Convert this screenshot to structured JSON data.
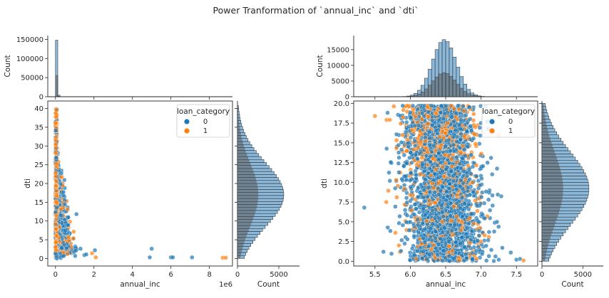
{
  "chart_data": {
    "title": "Power Tranformation of `annual_inc` and `dti`",
    "colors": {
      "class0": "#1f77b4",
      "class1": "#ff7f0e",
      "hist": "#6fa6cf"
    },
    "panels": [
      {
        "type": "scatter",
        "xlabel": "annual_inc",
        "ylabel": "dti",
        "x_offset_label": "1e6",
        "xlim": [
          -0.4,
          9.2
        ],
        "ylim": [
          -2,
          42
        ],
        "xticks": [
          "0",
          "2",
          "4",
          "6",
          "8"
        ],
        "xtick_values": [
          0,
          2,
          4,
          6,
          8
        ],
        "yticks": [
          "0",
          "5",
          "10",
          "15",
          "20",
          "25",
          "30",
          "35",
          "40"
        ],
        "ytick_values": [
          0,
          5,
          10,
          15,
          20,
          25,
          30,
          35,
          40
        ],
        "legend": {
          "title": "loan_category",
          "entries": [
            "0",
            "1"
          ],
          "placement": "top-right"
        },
        "top_hist": {
          "ylabel": "Count",
          "yticks": [
            "0",
            "50000",
            "100000",
            "150000"
          ],
          "ytick_values": [
            0,
            50000,
            100000,
            150000
          ],
          "ylim": [
            0,
            160000
          ]
        },
        "right_hist": {
          "xlabel": "Count",
          "xticks": [
            "0",
            "5000"
          ],
          "xtick_values": [
            0,
            5000
          ],
          "xlim": [
            0,
            7500
          ]
        },
        "outliers": [
          {
            "x": 1.5,
            "y": 0.9,
            "class": 0
          },
          {
            "x": 1.6,
            "y": 1.1,
            "class": 0
          },
          {
            "x": 1.9,
            "y": 1.4,
            "class": 1
          },
          {
            "x": 2.1,
            "y": 0.3,
            "class": 1
          },
          {
            "x": 2.05,
            "y": 2.2,
            "class": 0
          },
          {
            "x": 1.3,
            "y": 2.6,
            "class": 0
          },
          {
            "x": 4.9,
            "y": 0.3,
            "class": 0
          },
          {
            "x": 5.0,
            "y": 2.6,
            "class": 0
          },
          {
            "x": 6.0,
            "y": 0.3,
            "class": 0
          },
          {
            "x": 6.1,
            "y": 0.3,
            "class": 0
          },
          {
            "x": 7.1,
            "y": 0.3,
            "class": 0
          },
          {
            "x": 8.7,
            "y": 0.2,
            "class": 1
          },
          {
            "x": 8.85,
            "y": 0.2,
            "class": 1
          }
        ]
      },
      {
        "type": "scatter",
        "xlabel": "annual_inc",
        "ylabel": "dti",
        "xlim": [
          5.2,
          7.8
        ],
        "ylim": [
          -0.6,
          20.3
        ],
        "xticks": [
          "5.5",
          "6.0",
          "6.5",
          "7.0",
          "7.5"
        ],
        "xtick_values": [
          5.5,
          6.0,
          6.5,
          7.0,
          7.5
        ],
        "yticks": [
          "0.0",
          "2.5",
          "5.0",
          "7.5",
          "10.0",
          "12.5",
          "15.0",
          "17.5",
          "20.0"
        ],
        "ytick_values": [
          0,
          2.5,
          5,
          7.5,
          10,
          12.5,
          15,
          17.5,
          20
        ],
        "legend": {
          "title": "loan_category",
          "entries": [
            "0",
            "1"
          ],
          "placement": "top-right"
        },
        "top_hist": {
          "ylabel": "Count",
          "yticks": [
            "0",
            "5000",
            "10000",
            "15000"
          ],
          "ytick_values": [
            0,
            5000,
            10000,
            15000
          ],
          "ylim": [
            0,
            19500
          ]
        },
        "right_hist": {
          "xlabel": "Count",
          "xticks": [
            "0",
            "5000"
          ],
          "xtick_values": [
            0,
            5000
          ],
          "xlim": [
            0,
            7500
          ]
        },
        "outliers": [
          {
            "x": 5.35,
            "y": 6.8,
            "class": 0
          },
          {
            "x": 5.5,
            "y": 18.4,
            "class": 1
          },
          {
            "x": 5.62,
            "y": 1.2,
            "class": 0
          },
          {
            "x": 7.42,
            "y": 1.1,
            "class": 0
          },
          {
            "x": 7.5,
            "y": 0.2,
            "class": 0
          },
          {
            "x": 7.55,
            "y": 0.3,
            "class": 0
          },
          {
            "x": 7.6,
            "y": 0.1,
            "class": 1
          },
          {
            "x": 7.25,
            "y": 0.2,
            "class": 0
          },
          {
            "x": 7.3,
            "y": 1.7,
            "class": 0
          }
        ]
      }
    ]
  }
}
